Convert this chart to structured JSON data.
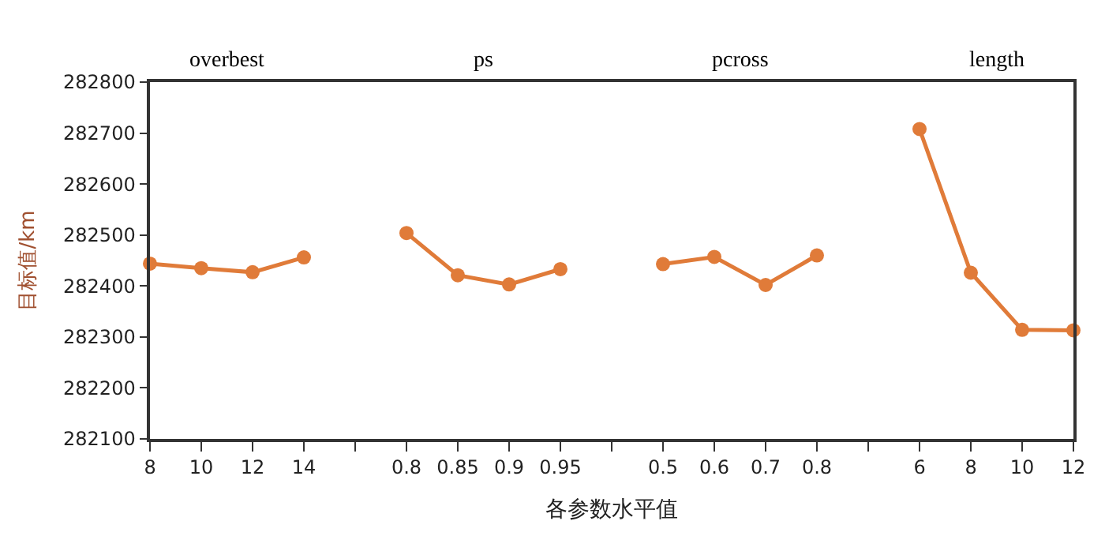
{
  "chart_data": {
    "type": "line",
    "xlabel": "各参数水平值",
    "ylabel": "目标值/km",
    "categories": [
      "8",
      "10",
      "12",
      "14",
      null,
      "0.8",
      "0.85",
      "0.9",
      "0.95",
      null,
      "0.5",
      "0.6",
      "0.7",
      "0.8",
      null,
      "6",
      "8",
      "10",
      "12"
    ],
    "series": [
      {
        "color": "#e07b39",
        "values": [
          282444,
          282435,
          282427,
          282456,
          null,
          null,
          null,
          null,
          null,
          null,
          null,
          null,
          null,
          null,
          null,
          null,
          null,
          null,
          null
        ]
      },
      {
        "color": "#e07b39",
        "values": [
          null,
          null,
          null,
          null,
          null,
          282504,
          282421,
          282403,
          282433,
          null,
          null,
          null,
          null,
          null,
          null,
          null,
          null,
          null,
          null
        ]
      },
      {
        "color": "#e07b39",
        "values": [
          null,
          null,
          null,
          null,
          null,
          null,
          null,
          null,
          null,
          null,
          282443,
          282457,
          282402,
          282460,
          null,
          null,
          null,
          null,
          null
        ]
      },
      {
        "color": "#e07b39",
        "values": [
          null,
          null,
          null,
          null,
          null,
          null,
          null,
          null,
          null,
          null,
          null,
          null,
          null,
          null,
          null,
          282708,
          282426,
          282314,
          282313
        ]
      }
    ],
    "ylim": [
      282100,
      282800
    ],
    "yticks": [
      282100,
      282200,
      282300,
      282400,
      282500,
      282600,
      282700,
      282800
    ],
    "annotations": [
      "overbest",
      "ps",
      "pcross",
      "length"
    ],
    "marker": "circle",
    "line_style": "solid"
  }
}
